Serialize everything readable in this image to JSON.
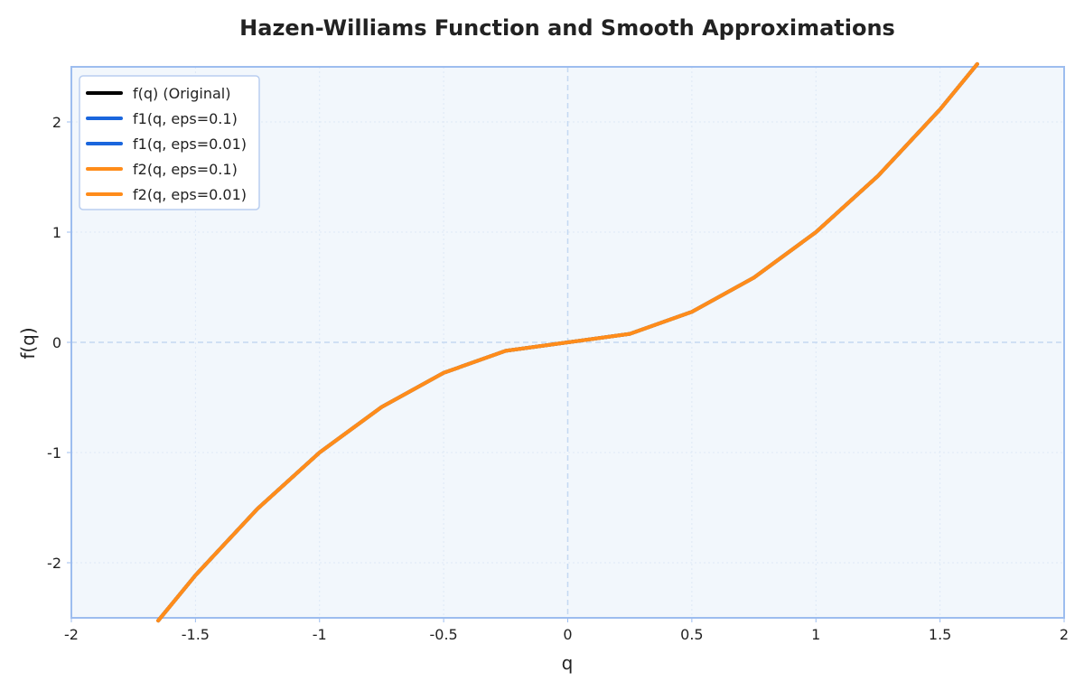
{
  "chart_data": {
    "type": "line",
    "title": "Hazen-Williams Function and Smooth Approximations",
    "xlabel": "q",
    "ylabel": "f(q)",
    "xlim": [
      -2,
      2
    ],
    "ylim": [
      -2.5,
      2.5
    ],
    "x_ticks": [
      {
        "value": -2,
        "label": "-2"
      },
      {
        "value": -1.5,
        "label": "-1.5"
      },
      {
        "value": -1,
        "label": "-1"
      },
      {
        "value": -0.5,
        "label": "-0.5"
      },
      {
        "value": 0,
        "label": "0"
      },
      {
        "value": 0.5,
        "label": "0.5"
      },
      {
        "value": 1,
        "label": "1"
      },
      {
        "value": 1.5,
        "label": "1.5"
      },
      {
        "value": 2,
        "label": "2"
      }
    ],
    "y_ticks": [
      {
        "value": -2,
        "label": "-2"
      },
      {
        "value": -1,
        "label": "-1"
      },
      {
        "value": 0,
        "label": "0"
      },
      {
        "value": 1,
        "label": "1"
      },
      {
        "value": 2,
        "label": "2"
      }
    ],
    "grid": true,
    "zero_lines": true,
    "legend_position": "top-left",
    "x": [
      -1.65,
      -1.5,
      -1.25,
      -1.0,
      -0.75,
      -0.5,
      -0.25,
      0.0,
      0.25,
      0.5,
      0.75,
      1.0,
      1.25,
      1.5,
      1.65
    ],
    "series": [
      {
        "name": "f(q) (Original)",
        "color": "#000000",
        "y": [
          -2.525,
          -2.114,
          -1.51,
          -1.0,
          -0.587,
          -0.277,
          -0.077,
          0.0,
          0.077,
          0.277,
          0.587,
          1.0,
          1.51,
          2.114,
          2.525
        ]
      },
      {
        "name": "f1(q, eps=0.1)",
        "color": "#1a66dd",
        "y": [
          -2.525,
          -2.114,
          -1.51,
          -1.0,
          -0.587,
          -0.277,
          -0.077,
          0.0,
          0.077,
          0.277,
          0.587,
          1.0,
          1.51,
          2.114,
          2.525
        ]
      },
      {
        "name": "f1(q, eps=0.01)",
        "color": "#1a66dd",
        "y": [
          -2.525,
          -2.114,
          -1.51,
          -1.0,
          -0.587,
          -0.277,
          -0.077,
          0.0,
          0.077,
          0.277,
          0.587,
          1.0,
          1.51,
          2.114,
          2.525
        ]
      },
      {
        "name": "f2(q, eps=0.1)",
        "color": "#ff8c1a",
        "y": [
          -2.525,
          -2.114,
          -1.51,
          -1.0,
          -0.587,
          -0.277,
          -0.077,
          0.0,
          0.077,
          0.277,
          0.587,
          1.0,
          1.51,
          2.114,
          2.525
        ]
      },
      {
        "name": "f2(q, eps=0.01)",
        "color": "#ff8c1a",
        "y": [
          -2.525,
          -2.114,
          -1.51,
          -1.0,
          -0.587,
          -0.277,
          -0.077,
          0.0,
          0.077,
          0.277,
          0.587,
          1.0,
          1.51,
          2.114,
          2.525
        ]
      }
    ],
    "colors": {
      "plot_background": "#f2f7fc",
      "plot_border": "#9dbdef",
      "zero_line": "#c4d8f1",
      "grid": "#dde8f6",
      "legend_border": "#b9cef0"
    }
  }
}
